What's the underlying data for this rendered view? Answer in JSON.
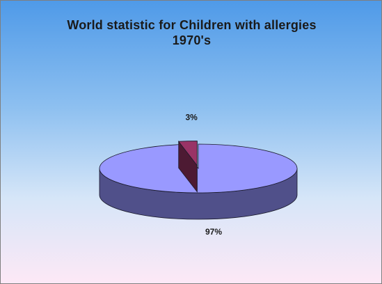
{
  "chart_data": {
    "type": "pie",
    "title": "World statistic for Children with allergies",
    "subtitle": "1970's",
    "three_d": true,
    "legend": false,
    "slices": [
      {
        "label": "97%",
        "value": 97,
        "color": "#9999ff",
        "side_color": "#50508a",
        "exploded": false
      },
      {
        "label": "3%",
        "value": 3,
        "color": "#993366",
        "side_color": "#4d1a33",
        "exploded": true
      }
    ]
  }
}
